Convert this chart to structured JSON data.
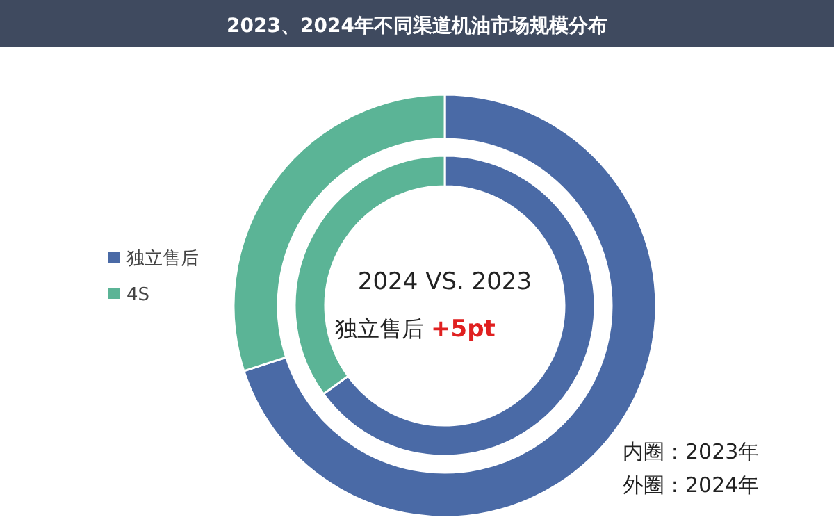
{
  "chart_data": {
    "type": "donut",
    "title": "2023、2024年不同渠道机油市场规模分布",
    "categories": [
      "独立售后",
      "4S"
    ],
    "series": [
      {
        "colors": [
          "#4a6aa6",
          "#5bb496"
        ],
        "values": [
          65,
          35
        ]
      },
      {
        "colors": [
          "#4a6aa6",
          "#5bb496"
        ],
        "values": [
          70,
          30
        ]
      }
    ],
    "legend": "left",
    "annotations": [
      "2024 VS. 2023",
      "独立售后",
      "+5pt",
      "内圈：2023年",
      "外圈：2024年"
    ]
  }
}
